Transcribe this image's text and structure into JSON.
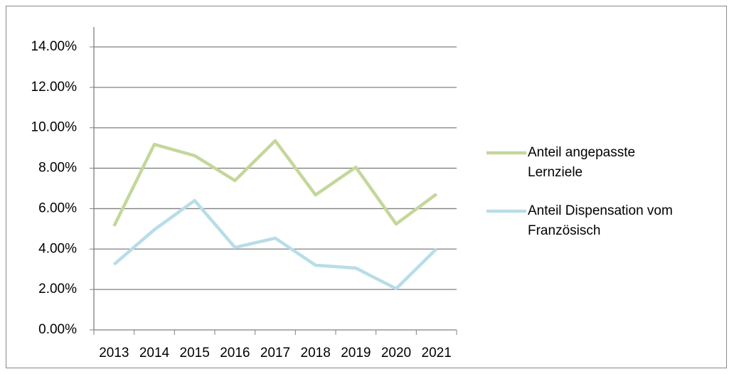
{
  "chart_data": {
    "type": "line",
    "categories": [
      "2013",
      "2014",
      "2015",
      "2016",
      "2017",
      "2018",
      "2019",
      "2020",
      "2021"
    ],
    "series": [
      {
        "name": "Anteil angepasste Lernziele",
        "color": "#c4d79b",
        "values": [
          5.14,
          9.18,
          8.62,
          7.39,
          9.36,
          6.68,
          8.05,
          5.24,
          6.72
        ]
      },
      {
        "name": "Anteil Dispensation vom Französisch",
        "color": "#b7dde8",
        "values": [
          3.24,
          4.96,
          6.4,
          4.08,
          4.54,
          3.2,
          3.06,
          2.04,
          4.01
        ]
      }
    ],
    "ylim": [
      0,
      14
    ],
    "yticks": [
      {
        "value": 0,
        "label": "0.00%"
      },
      {
        "value": 2,
        "label": "2.00%"
      },
      {
        "value": 4,
        "label": "4.00%"
      },
      {
        "value": 6,
        "label": "6.00%"
      },
      {
        "value": 8,
        "label": "8.00%"
      },
      {
        "value": 10,
        "label": "10.00%"
      },
      {
        "value": 12,
        "label": "12.00%"
      },
      {
        "value": 14,
        "label": "14.00%"
      }
    ],
    "grid": true,
    "legend": "right"
  }
}
